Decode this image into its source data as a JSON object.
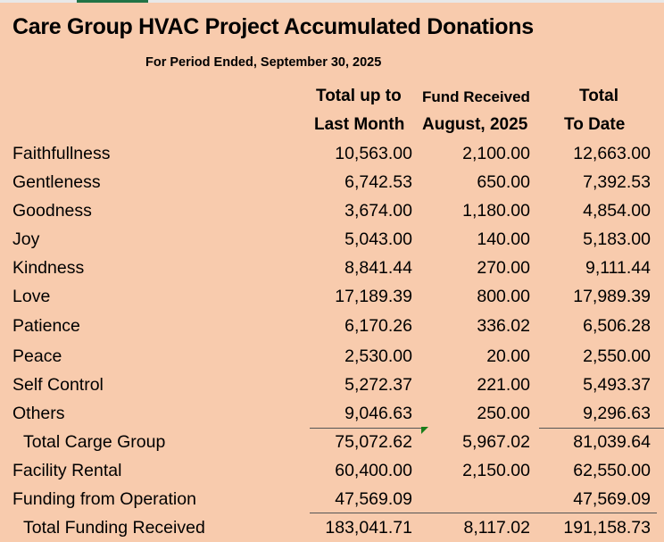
{
  "title": "Care Group HVAC Project Accumulated Donations",
  "subtitle": "For Period Ended, September 30, 2025",
  "headers": {
    "col1_line1": "Total up to",
    "col1_line2": "Last Month",
    "col2_line1": "Fund Received",
    "col2_line2": "August, 2025",
    "col3_line1": "Total",
    "col3_line2": "To Date"
  },
  "rows": [
    {
      "label": "Faithfullness",
      "last_month": "10,563.00",
      "received": "2,100.00",
      "to_date": "12,663.00"
    },
    {
      "label": "Gentleness",
      "last_month": "6,742.53",
      "received": "650.00",
      "to_date": "7,392.53"
    },
    {
      "label": "Goodness",
      "last_month": "3,674.00",
      "received": "1,180.00",
      "to_date": "4,854.00"
    },
    {
      "label": "Joy",
      "last_month": "5,043.00",
      "received": "140.00",
      "to_date": "5,183.00"
    },
    {
      "label": "Kindness",
      "last_month": "8,841.44",
      "received": "270.00",
      "to_date": "9,111.44"
    },
    {
      "label": "Love",
      "last_month": "17,189.39",
      "received": "800.00",
      "to_date": "17,989.39"
    },
    {
      "label": "Patience",
      "last_month": "6,170.26",
      "received": "336.02",
      "to_date": "6,506.28"
    },
    {
      "label": "Peace",
      "last_month": "2,530.00",
      "received": "20.00",
      "to_date": "2,550.00"
    },
    {
      "label": "Self Control",
      "last_month": "5,272.37",
      "received": "221.00",
      "to_date": "5,493.37"
    },
    {
      "label": "Others",
      "last_month": "9,046.63",
      "received": "250.00",
      "to_date": "9,296.63"
    },
    {
      "label": "Total Carge Group",
      "last_month": "75,072.62",
      "received": "5,967.02",
      "to_date": "81,039.64"
    },
    {
      "label": "Facility Rental",
      "last_month": "60,400.00",
      "received": "2,150.00",
      "to_date": "62,550.00"
    },
    {
      "label": "Funding from Operation",
      "last_month": "47,569.09",
      "received": "",
      "to_date": "47,569.09"
    },
    {
      "label": "Total Funding Received",
      "last_month": "183,041.71",
      "received": "8,117.02",
      "to_date": "191,158.73"
    }
  ],
  "colors": {
    "background": "#f8cbad",
    "selection": "#217346",
    "error_indicator": "#1a7d1a"
  }
}
